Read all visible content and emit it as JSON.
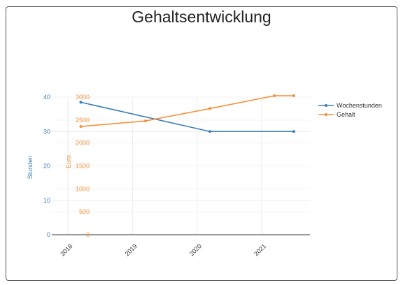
{
  "chart_data": {
    "type": "line",
    "title": "Gehaltsentwicklung",
    "x_tick_labels": [
      "2018",
      "2019",
      "2020",
      "2021"
    ],
    "x_range": [
      2017.75,
      2021.75
    ],
    "y_axes": [
      {
        "id": "left",
        "label": "Stunden",
        "range": [
          0,
          40
        ],
        "ticks": [
          0,
          10,
          20,
          30,
          40
        ],
        "color": "#3d7fb7"
      },
      {
        "id": "right",
        "label": "Euro",
        "range": [
          0,
          3000
        ],
        "ticks": [
          0,
          500,
          1000,
          1500,
          2000,
          2500,
          3000
        ],
        "color": "#f4923b"
      }
    ],
    "series": [
      {
        "name": "Wochenstunden",
        "axis": "left",
        "color": "#3d7fb7",
        "x": [
          2018.2,
          2020.2,
          2021.5
        ],
        "y": [
          38.5,
          30,
          30
        ]
      },
      {
        "name": "Gehalt",
        "axis": "right",
        "color": "#f4923b",
        "x": [
          2018.2,
          2019.2,
          2020.2,
          2021.2,
          2021.5
        ],
        "y": [
          2360,
          2480,
          2750,
          3030,
          3030
        ]
      }
    ],
    "grid": true,
    "legend": "right"
  }
}
